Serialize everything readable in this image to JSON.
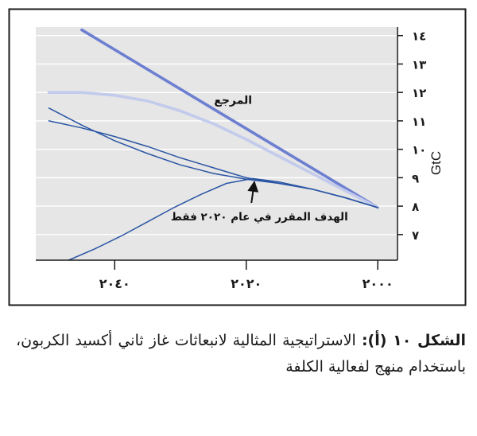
{
  "chart_data": {
    "type": "line",
    "x_direction": "right-to-left",
    "y_position": "right",
    "ylabel": "GtC",
    "x_ticks": [
      {
        "value": 2000,
        "label": "٢٠٠٠"
      },
      {
        "value": 2020,
        "label": "٢٠٢٠"
      },
      {
        "value": 2040,
        "label": "٢٠٤٠"
      }
    ],
    "y_ticks": [
      {
        "value": 7,
        "label": "٧"
      },
      {
        "value": 8,
        "label": "٨"
      },
      {
        "value": 9,
        "label": "٩"
      },
      {
        "value": 10,
        "label": "١٠"
      },
      {
        "value": 11,
        "label": "١١"
      },
      {
        "value": 12,
        "label": "١٢"
      },
      {
        "value": 13,
        "label": "١٣"
      },
      {
        "value": 14,
        "label": "١٤"
      }
    ],
    "xlim": [
      1997,
      2052
    ],
    "ylim": [
      6.1,
      14.3
    ],
    "grid": true,
    "series": [
      {
        "name": "المرجع",
        "color": "#6d7fd0",
        "style": "thick",
        "x": [
          2000,
          2045
        ],
        "y": [
          7.95,
          14.2
        ]
      },
      {
        "color": "#c3cbec",
        "style": "thick",
        "x": [
          2000,
          2005,
          2010,
          2015,
          2020,
          2025,
          2030,
          2035,
          2040,
          2045,
          2050
        ],
        "y": [
          7.95,
          8.55,
          9.15,
          9.75,
          10.35,
          10.9,
          11.35,
          11.7,
          11.9,
          12.0,
          12.0
        ]
      },
      {
        "color": "#2a55a4",
        "style": "thin",
        "x": [
          2000,
          2005,
          2010,
          2015,
          2020,
          2025,
          2030,
          2035,
          2040,
          2045,
          2050
        ],
        "y": [
          7.95,
          8.3,
          8.6,
          8.8,
          8.95,
          9.15,
          9.45,
          9.85,
          10.3,
          10.85,
          11.45
        ]
      },
      {
        "color": "#2a55a4",
        "style": "thin",
        "x": [
          2000,
          2005,
          2010,
          2015,
          2020,
          2025,
          2030,
          2035,
          2040,
          2045,
          2050
        ],
        "y": [
          7.95,
          8.3,
          8.6,
          8.8,
          9.0,
          9.35,
          9.7,
          10.1,
          10.45,
          10.75,
          11.0
        ]
      },
      {
        "color": "#2a55a4",
        "style": "thin",
        "x": [
          2000,
          2005,
          2010,
          2015,
          2019,
          2023,
          2027,
          2031,
          2035,
          2039,
          2043,
          2047
        ],
        "y": [
          7.95,
          8.3,
          8.6,
          8.85,
          8.97,
          8.8,
          8.4,
          7.95,
          7.45,
          6.95,
          6.5,
          6.1
        ]
      }
    ],
    "annotations": [
      {
        "text": "المرجع",
        "x": 2022,
        "y": 11.6
      },
      {
        "text": "الهدف المقرر في عام ٢٠٢٠ فقط",
        "x": 2018,
        "y": 7.5,
        "arrow_to": {
          "x": 2019,
          "y": 8.97
        }
      }
    ]
  },
  "caption": {
    "lead": "الشكل ١٠ (أ):",
    "text": "الاستراتيجية المثالية لانبعاثات غاز ثاني أكسيد الكربون، باستخدام منهج لفعالية الكلفة"
  }
}
